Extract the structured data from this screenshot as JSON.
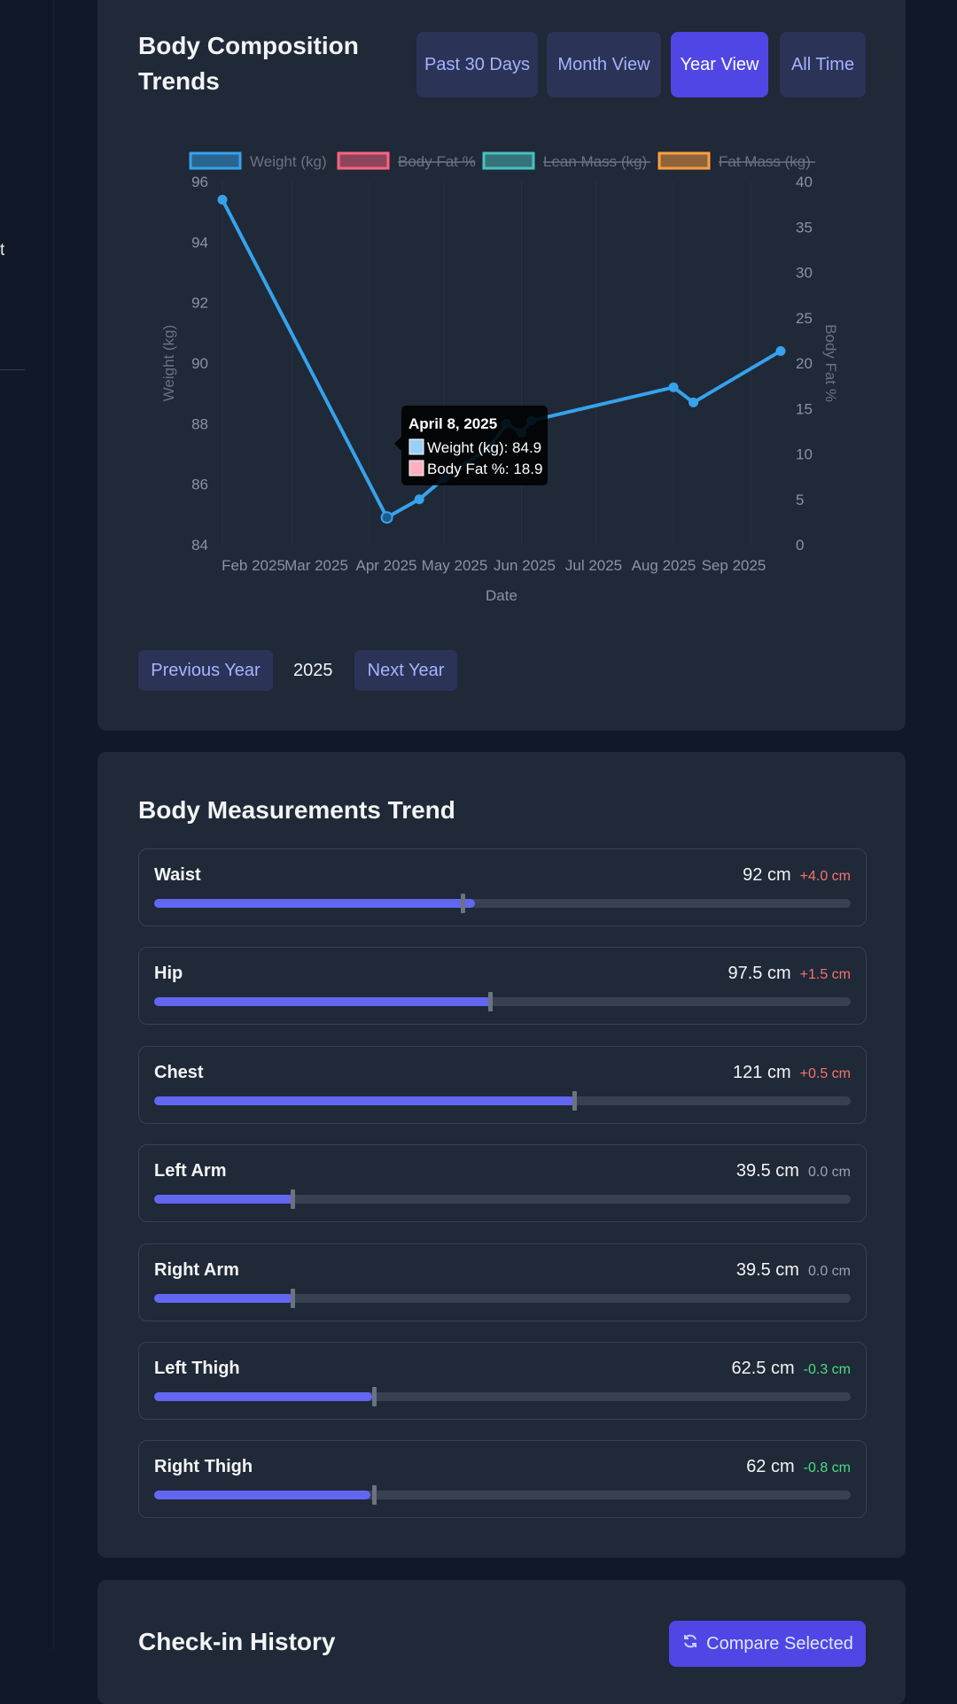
{
  "sidebar": {
    "partial_text": "t"
  },
  "composition": {
    "title": "Body Composition Trends",
    "ranges": [
      {
        "label": "Past 30 Days",
        "active": false
      },
      {
        "label": "Month View",
        "active": false
      },
      {
        "label": "Year View",
        "active": true
      },
      {
        "label": "All Time",
        "active": false
      }
    ],
    "prev_label": "Previous Year",
    "year": "2025",
    "next_label": "Next Year"
  },
  "chart_data": {
    "type": "line",
    "xlabel": "Date",
    "ylabel": "Weight (kg)",
    "y2label": "Body Fat %",
    "x_ticks": [
      "Feb 2025",
      "Mar 2025",
      "Apr 2025",
      "May 2025",
      "Jun 2025",
      "Jul 2025",
      "Aug 2025",
      "Sep 2025"
    ],
    "ylim": [
      84,
      96
    ],
    "y_ticks": [
      84,
      86,
      88,
      90,
      92,
      94,
      96
    ],
    "y2lim": [
      0,
      40
    ],
    "y2_ticks": [
      0,
      5,
      10,
      15,
      20,
      25,
      30,
      35,
      40
    ],
    "legend_position": "top",
    "series": [
      {
        "name": "Weight (kg)",
        "color": "#36a2eb",
        "visible": true,
        "x": [
          "2025-02-01",
          "2025-04-08",
          "2025-04-21",
          "2025-05-01",
          "2025-05-19",
          "2025-05-26",
          "2025-06-01",
          "2025-06-05",
          "2025-08-01",
          "2025-08-09",
          "2025-09-13"
        ],
        "y": [
          95.4,
          84.9,
          85.5,
          86.2,
          87.2,
          88.0,
          87.7,
          88.1,
          89.2,
          88.7,
          90.4
        ]
      },
      {
        "name": "Body Fat %",
        "color": "#ff6384",
        "visible": false,
        "axis": "right"
      },
      {
        "name": "Lean Mass (kg)",
        "color": "#4bc0c0",
        "visible": false
      },
      {
        "name": "Fat Mass (kg)",
        "color": "#ff9f40",
        "visible": false
      }
    ],
    "tooltip": {
      "title": "April 8, 2025",
      "lines": [
        {
          "text": "Weight (kg): 84.9",
          "color": "#9ad0f5"
        },
        {
          "text": "Body Fat %: 18.9",
          "color": "#ffb1c1"
        }
      ]
    }
  },
  "measurements": {
    "title": "Body Measurements Trend",
    "items": [
      {
        "name": "Waist",
        "value": "92 cm",
        "change": "+4.0 cm",
        "trend": "up",
        "fill": 0.46,
        "prev": 0.443
      },
      {
        "name": "Hip",
        "value": "97.5 cm",
        "change": "+1.5 cm",
        "trend": "up",
        "fill": 0.485,
        "prev": 0.482
      },
      {
        "name": "Chest",
        "value": "121 cm",
        "change": "+0.5 cm",
        "trend": "up",
        "fill": 0.605,
        "prev": 0.603
      },
      {
        "name": "Left Arm",
        "value": "39.5 cm",
        "change": "0.0 cm",
        "trend": "zero",
        "fill": 0.2,
        "prev": 0.198
      },
      {
        "name": "Right Arm",
        "value": "39.5 cm",
        "change": "0.0 cm",
        "trend": "zero",
        "fill": 0.2,
        "prev": 0.198
      },
      {
        "name": "Left Thigh",
        "value": "62.5 cm",
        "change": "-0.3 cm",
        "trend": "down",
        "fill": 0.313,
        "prev": 0.315
      },
      {
        "name": "Right Thigh",
        "value": "62 cm",
        "change": "-0.8 cm",
        "trend": "down",
        "fill": 0.31,
        "prev": 0.315
      }
    ]
  },
  "history": {
    "title": "Check-in History",
    "compare_label": "Compare Selected",
    "compare_icon": "refresh-icon"
  }
}
